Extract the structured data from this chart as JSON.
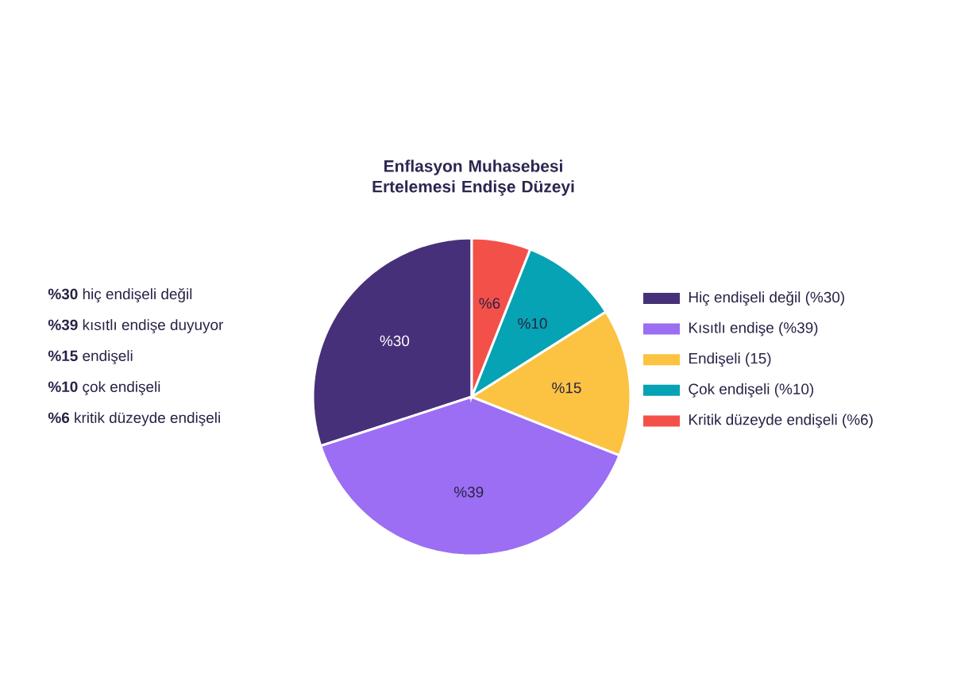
{
  "chart_data": {
    "type": "pie",
    "title": "Enflasyon Muhasebesi Ertelemesi Endişe Düzeyi",
    "categories": [
      "Hiç endişeli değil (%30)",
      "Kısıtlı endişe (%39)",
      "Endişeli (15)",
      "Çok endişeli (%10)",
      "Kritik düzeyde endişeli (%6)"
    ],
    "values": [
      30,
      39,
      15,
      10,
      6
    ],
    "colors": [
      "#47307a",
      "#9b6ef3",
      "#fbc341",
      "#05a3b4",
      "#f4504a"
    ],
    "value_labels": [
      "%30",
      "%39",
      "%15",
      "%10",
      "%6"
    ],
    "legend": "right",
    "annotations": [
      "**%30** hiç endişeli değil",
      "**%39** kısıtlı endişe duyuyor",
      "**%15** endişeli",
      "**%10** çok endişeli",
      "**%6** kritik düzeyde endişeli"
    ]
  }
}
